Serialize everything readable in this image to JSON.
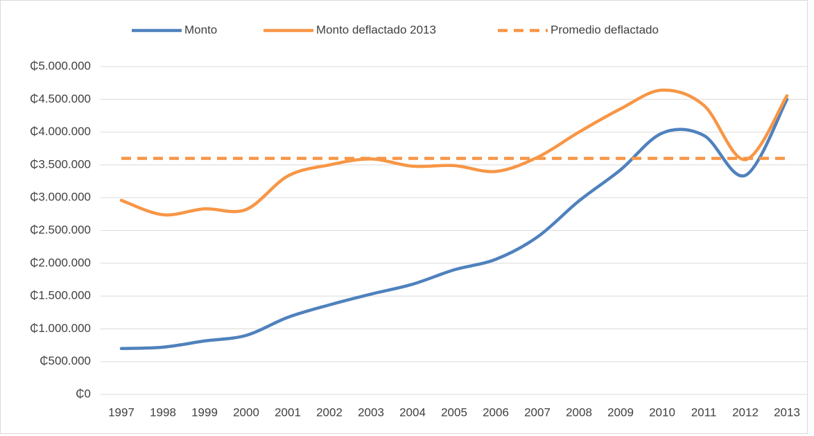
{
  "chart_data": {
    "type": "line",
    "categories": [
      "1997",
      "1998",
      "1999",
      "2000",
      "2001",
      "2002",
      "2003",
      "2004",
      "2005",
      "2006",
      "2007",
      "2008",
      "2009",
      "2010",
      "2011",
      "2012",
      "2013"
    ],
    "series": [
      {
        "name": "Monto",
        "color": "#4f81bd",
        "dashed": false,
        "values": [
          700000,
          720000,
          815000,
          900000,
          1175000,
          1365000,
          1530000,
          1680000,
          1900000,
          2060000,
          2400000,
          2950000,
          3425000,
          3985000,
          3950000,
          3340000,
          4500000
        ]
      },
      {
        "name": "Monto deflactado 2013",
        "color": "#f79646",
        "dashed": false,
        "values": [
          2960000,
          2740000,
          2830000,
          2820000,
          3330000,
          3500000,
          3590000,
          3480000,
          3490000,
          3400000,
          3615000,
          4000000,
          4355000,
          4640000,
          4410000,
          3580000,
          4555000
        ]
      },
      {
        "name": "Promedio deflactado",
        "color": "#f79646",
        "dashed": true,
        "values": [
          3600000,
          3600000,
          3600000,
          3600000,
          3600000,
          3600000,
          3600000,
          3600000,
          3600000,
          3600000,
          3600000,
          3600000,
          3600000,
          3600000,
          3600000,
          3600000,
          3600000
        ]
      }
    ],
    "ylim": [
      0,
      5000000
    ],
    "yticks": [
      {
        "value": 0,
        "label": "₵0"
      },
      {
        "value": 500000,
        "label": "₵500.000"
      },
      {
        "value": 1000000,
        "label": "₵1.000.000"
      },
      {
        "value": 1500000,
        "label": "₵1.500.000"
      },
      {
        "value": 2000000,
        "label": "₵2.000.000"
      },
      {
        "value": 2500000,
        "label": "₵2.500.000"
      },
      {
        "value": 3000000,
        "label": "₵3.000.000"
      },
      {
        "value": 3500000,
        "label": "₵3.500.000"
      },
      {
        "value": 4000000,
        "label": "₵4.000.000"
      },
      {
        "value": 4500000,
        "label": "₵4.500.000"
      },
      {
        "value": 5000000,
        "label": "₵5.000.000"
      }
    ],
    "grid": true,
    "legend": "top"
  }
}
